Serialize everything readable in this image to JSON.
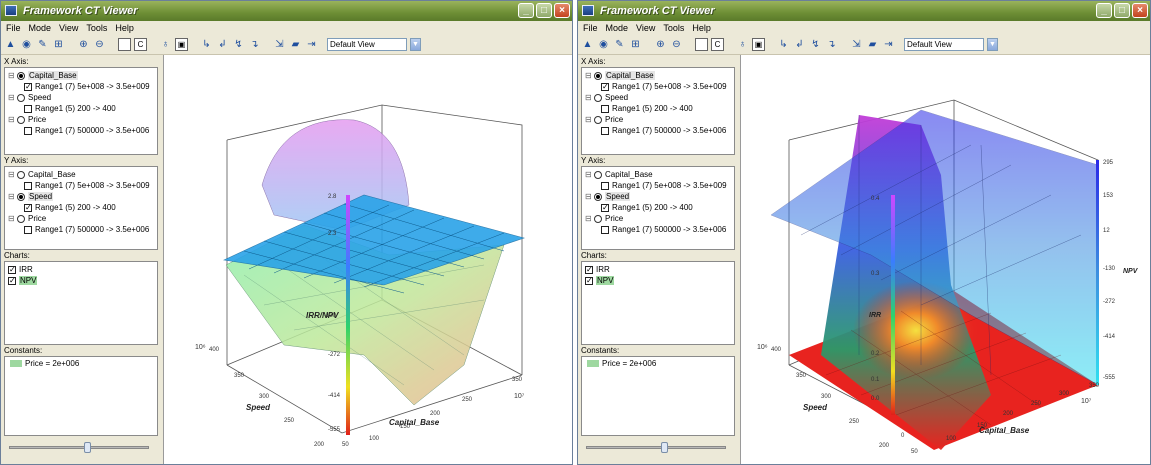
{
  "app": {
    "title": "Framework CT Viewer",
    "menu": [
      "File",
      "Mode",
      "View",
      "Tools",
      "Help"
    ],
    "view_select": "Default View",
    "window_controls": {
      "minimize": "_",
      "maximize": "□",
      "close": "×"
    }
  },
  "colors": {
    "titlebar": "#6d8e35",
    "panel_bg": "#ece9d8",
    "plane_blue": "#2aa3e8",
    "surface_red": "#e8231f"
  },
  "toolbar_icons": [
    "triangle-icon",
    "eye-icon",
    "pencil-icon",
    "grid-icon",
    "zoom-in-icon",
    "zoom-out-icon",
    "frame-icon",
    "copy-icon",
    "light-icon",
    "fit-icon",
    "axis-icon",
    "axis-icon",
    "axis-icon",
    "axis-icon",
    "save-icon",
    "open-icon",
    "export-icon"
  ],
  "left_panel": {
    "x_axis_label": "X Axis:",
    "y_axis_label": "Y Axis:",
    "charts_label": "Charts:",
    "constants_label": "Constants:",
    "variables": [
      {
        "name": "Capital_Base",
        "range": "Range1 (7) 5e+008 -> 3.5e+009"
      },
      {
        "name": "Speed",
        "range": "Range1 (5) 200 -> 400"
      },
      {
        "name": "Price",
        "range": "Range1 (7) 500000 -> 3.5e+006"
      }
    ],
    "charts": [
      "IRR",
      "NPV"
    ],
    "constant": "Price = 2e+006"
  },
  "views": [
    {
      "x_selected": "Capital_Base",
      "y_selected": "Speed",
      "z_axis_label": "IRR/NPV",
      "z_ticks": [
        "-130",
        "-272",
        "-414",
        "-555"
      ],
      "z_upper_ticks": [
        "2.8",
        "2.3"
      ],
      "speed_ticks": [
        "400",
        "350",
        "300",
        "250",
        "200"
      ],
      "speed_label": "Speed",
      "capital_ticks": [
        "50",
        "100",
        "150",
        "200",
        "250",
        "350"
      ],
      "capital_label": "Capital_Base",
      "exp_marker": "10⁶",
      "exp_marker_right": "10⁷"
    },
    {
      "x_selected": "Capital_Base",
      "y_selected": "Speed",
      "z_axis_label": "IRR",
      "npv_label": "NPV",
      "npv_ticks": [
        "295",
        "153",
        "12",
        "-130",
        "-272",
        "-414",
        "-555"
      ],
      "irr_ticks": [
        "0.4",
        "0.3",
        "0.2",
        "0.1",
        "0.0"
      ],
      "speed_ticks": [
        "400",
        "350",
        "300",
        "250",
        "200"
      ],
      "speed_label": "Speed",
      "capital_ticks": [
        "0",
        "50",
        "100",
        "150",
        "200",
        "250",
        "300",
        "350"
      ],
      "capital_label": "Capital_Base",
      "exp_marker": "10⁶",
      "exp_marker_right": "10⁷"
    }
  ]
}
